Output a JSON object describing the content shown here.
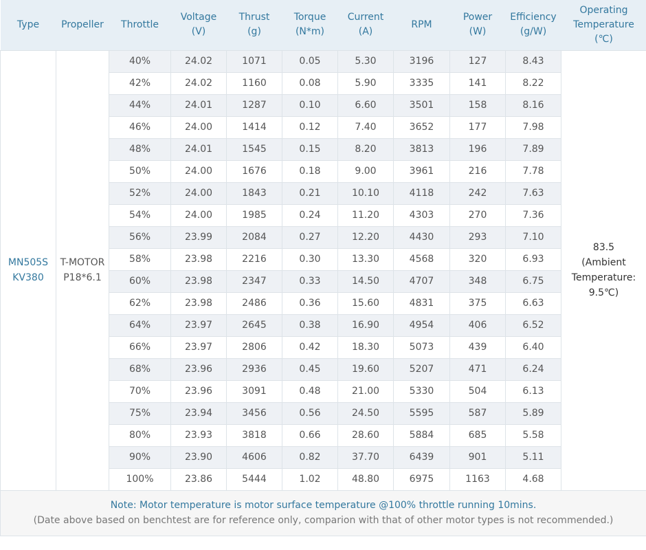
{
  "headers": [
    {
      "key": "type",
      "label": "Type"
    },
    {
      "key": "propeller",
      "label": "Propeller"
    },
    {
      "key": "throttle",
      "label": "Throttle"
    },
    {
      "key": "voltage",
      "label": "Voltage\n(V)"
    },
    {
      "key": "thrust",
      "label": "Thrust\n(g)"
    },
    {
      "key": "torque",
      "label": "Torque\n(N*m)"
    },
    {
      "key": "current",
      "label": "Current\n(A)"
    },
    {
      "key": "rpm",
      "label": "RPM"
    },
    {
      "key": "power",
      "label": "Power\n(W)"
    },
    {
      "key": "efficiency",
      "label": "Efficiency\n(g/W)"
    },
    {
      "key": "temperature",
      "label": "Operating\nTemperature\n(℃)"
    }
  ],
  "motor": {
    "type": "MN505S\nKV380",
    "propeller": "T-MOTOR\nP18*6.1",
    "operating_temperature": "83.5\n(Ambient\nTemperature:\n9.5℃)"
  },
  "rows": [
    {
      "throttle": "40%",
      "voltage": "24.02",
      "thrust": "1071",
      "torque": "0.05",
      "current": "5.30",
      "rpm": "3196",
      "power": "127",
      "efficiency": "8.43"
    },
    {
      "throttle": "42%",
      "voltage": "24.02",
      "thrust": "1160",
      "torque": "0.08",
      "current": "5.90",
      "rpm": "3335",
      "power": "141",
      "efficiency": "8.22"
    },
    {
      "throttle": "44%",
      "voltage": "24.01",
      "thrust": "1287",
      "torque": "0.10",
      "current": "6.60",
      "rpm": "3501",
      "power": "158",
      "efficiency": "8.16"
    },
    {
      "throttle": "46%",
      "voltage": "24.00",
      "thrust": "1414",
      "torque": "0.12",
      "current": "7.40",
      "rpm": "3652",
      "power": "177",
      "efficiency": "7.98"
    },
    {
      "throttle": "48%",
      "voltage": "24.01",
      "thrust": "1545",
      "torque": "0.15",
      "current": "8.20",
      "rpm": "3813",
      "power": "196",
      "efficiency": "7.89"
    },
    {
      "throttle": "50%",
      "voltage": "24.00",
      "thrust": "1676",
      "torque": "0.18",
      "current": "9.00",
      "rpm": "3961",
      "power": "216",
      "efficiency": "7.78"
    },
    {
      "throttle": "52%",
      "voltage": "24.00",
      "thrust": "1843",
      "torque": "0.21",
      "current": "10.10",
      "rpm": "4118",
      "power": "242",
      "efficiency": "7.63"
    },
    {
      "throttle": "54%",
      "voltage": "24.00",
      "thrust": "1985",
      "torque": "0.24",
      "current": "11.20",
      "rpm": "4303",
      "power": "270",
      "efficiency": "7.36"
    },
    {
      "throttle": "56%",
      "voltage": "23.99",
      "thrust": "2084",
      "torque": "0.27",
      "current": "12.20",
      "rpm": "4430",
      "power": "293",
      "efficiency": "7.10"
    },
    {
      "throttle": "58%",
      "voltage": "23.98",
      "thrust": "2216",
      "torque": "0.30",
      "current": "13.30",
      "rpm": "4568",
      "power": "320",
      "efficiency": "6.93"
    },
    {
      "throttle": "60%",
      "voltage": "23.98",
      "thrust": "2347",
      "torque": "0.33",
      "current": "14.50",
      "rpm": "4707",
      "power": "348",
      "efficiency": "6.75"
    },
    {
      "throttle": "62%",
      "voltage": "23.98",
      "thrust": "2486",
      "torque": "0.36",
      "current": "15.60",
      "rpm": "4831",
      "power": "375",
      "efficiency": "6.63"
    },
    {
      "throttle": "64%",
      "voltage": "23.97",
      "thrust": "2645",
      "torque": "0.38",
      "current": "16.90",
      "rpm": "4954",
      "power": "406",
      "efficiency": "6.52"
    },
    {
      "throttle": "66%",
      "voltage": "23.97",
      "thrust": "2806",
      "torque": "0.42",
      "current": "18.30",
      "rpm": "5073",
      "power": "439",
      "efficiency": "6.40"
    },
    {
      "throttle": "68%",
      "voltage": "23.96",
      "thrust": "2936",
      "torque": "0.45",
      "current": "19.60",
      "rpm": "5207",
      "power": "471",
      "efficiency": "6.24"
    },
    {
      "throttle": "70%",
      "voltage": "23.96",
      "thrust": "3091",
      "torque": "0.48",
      "current": "21.00",
      "rpm": "5330",
      "power": "504",
      "efficiency": "6.13"
    },
    {
      "throttle": "75%",
      "voltage": "23.94",
      "thrust": "3456",
      "torque": "0.56",
      "current": "24.50",
      "rpm": "5595",
      "power": "587",
      "efficiency": "5.89"
    },
    {
      "throttle": "80%",
      "voltage": "23.93",
      "thrust": "3818",
      "torque": "0.66",
      "current": "28.60",
      "rpm": "5884",
      "power": "685",
      "efficiency": "5.58"
    },
    {
      "throttle": "90%",
      "voltage": "23.90",
      "thrust": "4606",
      "torque": "0.82",
      "current": "37.70",
      "rpm": "6439",
      "power": "901",
      "efficiency": "5.11"
    },
    {
      "throttle": "100%",
      "voltage": "23.86",
      "thrust": "5444",
      "torque": "1.02",
      "current": "48.80",
      "rpm": "6975",
      "power": "1163",
      "efficiency": "4.68"
    }
  ],
  "note": "Note: Motor temperature is motor surface temperature @100% throttle running 10mins.",
  "disclaimer": "(Date above based on benchtest are for reference only, comparion with that of other motor types is not recommended.)",
  "colors": {
    "header_text": "#33789e",
    "header_bg": "#e7eff5",
    "row_stripe": "#eef1f5",
    "note_text": "#33789e"
  }
}
